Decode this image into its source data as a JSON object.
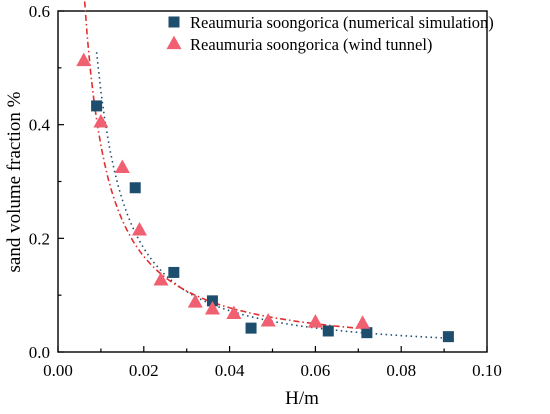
{
  "chart_data": {
    "type": "scatter",
    "title": "",
    "xlabel": "H/m",
    "ylabel": "sand volume fraction %",
    "xlim": [
      0.0,
      0.1
    ],
    "ylim": [
      0.0,
      0.6
    ],
    "x_ticks": [
      "0.00",
      "0.02",
      "0.04",
      "0.06",
      "0.08",
      "0.10"
    ],
    "y_ticks": [
      "0.0",
      "0.2",
      "0.4",
      "0.6"
    ],
    "grid": false,
    "legend_position": "top-right",
    "series": [
      {
        "name": "Reaumuria soongorica (numerical simulation)",
        "marker": "square",
        "color": "#1d4e6e",
        "trendline": "dotted",
        "trendline_color": "#1d4e6e",
        "points": [
          [
            0.009,
            0.433
          ],
          [
            0.018,
            0.289
          ],
          [
            0.027,
            0.14
          ],
          [
            0.036,
            0.09
          ],
          [
            0.045,
            0.042
          ],
          [
            0.063,
            0.037
          ],
          [
            0.072,
            0.034
          ],
          [
            0.091,
            0.027
          ]
        ]
      },
      {
        "name": "Reaumuria soongorica (wind tunnel)",
        "marker": "triangle",
        "color": "#f06070",
        "trendline": "dash-dot",
        "trendline_color": "#e03030",
        "points": [
          [
            0.006,
            0.512
          ],
          [
            0.01,
            0.404
          ],
          [
            0.015,
            0.324
          ],
          [
            0.019,
            0.214
          ],
          [
            0.024,
            0.126
          ],
          [
            0.032,
            0.087
          ],
          [
            0.036,
            0.075
          ],
          [
            0.041,
            0.067
          ],
          [
            0.049,
            0.054
          ],
          [
            0.06,
            0.052
          ],
          [
            0.071,
            0.05
          ]
        ]
      }
    ]
  }
}
